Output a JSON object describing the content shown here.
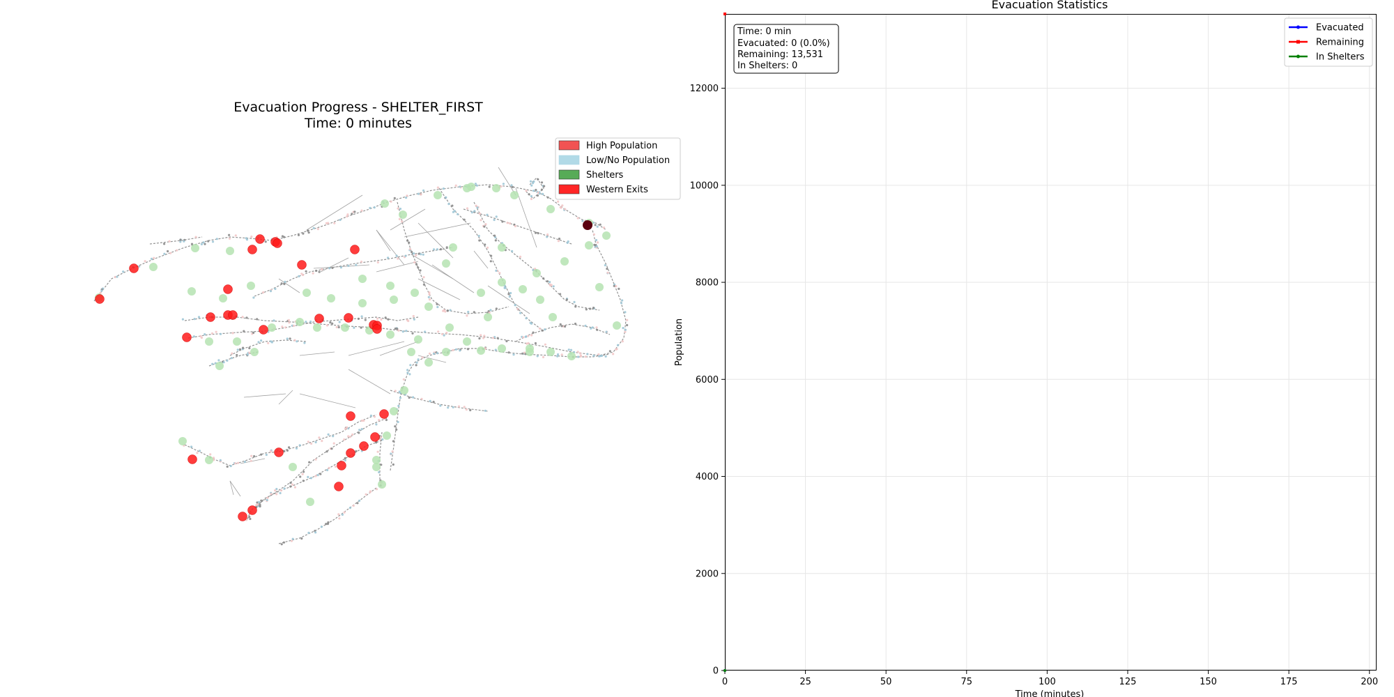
{
  "chart_data": [
    {
      "type": "network",
      "title_line1": "Evacuation Progress - SHELTER_FIRST",
      "title_line2": "Time: 0 minutes",
      "legend": [
        {
          "label": "High Population",
          "color": "#f04a4a"
        },
        {
          "label": "Low/No Population",
          "color": "#add8e6"
        },
        {
          "label": "Shelters",
          "color": "#4ea64e"
        },
        {
          "label": "Western Exits",
          "color": "#ff1a1a"
        }
      ],
      "colors": {
        "exit": "#ff1a1a",
        "shelter": "#b5e3b1",
        "node": "#9fc7d6",
        "edge": "#808080",
        "high": "#5a0010"
      }
    },
    {
      "type": "line",
      "title": "Evacuation Statistics",
      "xlabel": "Time (minutes)",
      "ylabel": "Population",
      "xlim": [
        0,
        202
      ],
      "ylim": [
        0,
        13531
      ],
      "xticks": [
        0,
        25,
        50,
        75,
        100,
        125,
        150,
        175,
        200
      ],
      "yticks": [
        0,
        2000,
        4000,
        6000,
        8000,
        10000,
        12000
      ],
      "grid": true,
      "legend_position": "top-right",
      "series": [
        {
          "name": "Evacuated",
          "color": "#0000ff",
          "marker": "circle",
          "x": [
            0
          ],
          "y": [
            0
          ]
        },
        {
          "name": "Remaining",
          "color": "#ff0000",
          "marker": "square",
          "x": [
            0
          ],
          "y": [
            13531
          ]
        },
        {
          "name": "In Shelters",
          "color": "#008000",
          "marker": "circle",
          "x": [
            0
          ],
          "y": [
            0
          ]
        }
      ],
      "stats_box": {
        "time": "Time: 0 min",
        "evacuated": "Evacuated: 0 (0.0%)",
        "remaining": "Remaining: 13,531",
        "in_shelters": "In Shelters: 0"
      }
    }
  ]
}
